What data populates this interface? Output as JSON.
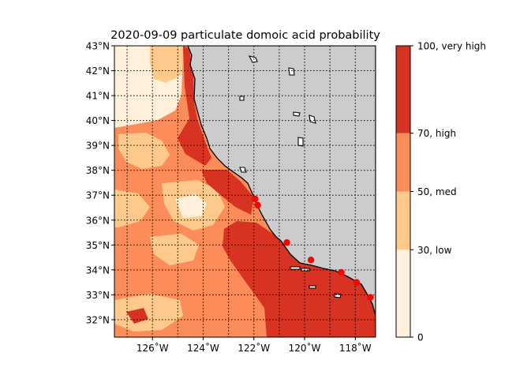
{
  "title": "2020-09-09 particulate domoic acid probability",
  "map": {
    "extent": {
      "lon_min": -127.5,
      "lon_max": -117.2,
      "lat_min": 31.3,
      "lat_max": 43.0
    },
    "lat_ticks": [
      {
        "value": 43,
        "label": "43°N"
      },
      {
        "value": 42,
        "label": "42°N"
      },
      {
        "value": 41,
        "label": "41°N"
      },
      {
        "value": 40,
        "label": "40°N"
      },
      {
        "value": 39,
        "label": "39°N"
      },
      {
        "value": 38,
        "label": "38°N"
      },
      {
        "value": 37,
        "label": "37°N"
      },
      {
        "value": 36,
        "label": "36°N"
      },
      {
        "value": 35,
        "label": "35°N"
      },
      {
        "value": 34,
        "label": "34°N"
      },
      {
        "value": 33,
        "label": "33°N"
      },
      {
        "value": 32,
        "label": "32°N"
      }
    ],
    "lon_ticks": [
      {
        "value": -126,
        "label": "126˚W"
      },
      {
        "value": -124,
        "label": "124˚W"
      },
      {
        "value": -122,
        "label": "122˚W"
      },
      {
        "value": -120,
        "label": "120˚W"
      },
      {
        "value": -118,
        "label": "118˚W"
      }
    ],
    "gridlines": "dotted",
    "land_color": "#cccccc",
    "coast_color": "#000000",
    "stations": [
      {
        "lon": -121.95,
        "lat": 36.85
      },
      {
        "lon": -121.85,
        "lat": 36.6
      },
      {
        "lon": -120.7,
        "lat": 35.1
      },
      {
        "lon": -119.75,
        "lat": 34.4
      },
      {
        "lon": -118.55,
        "lat": 33.9
      },
      {
        "lon": -117.95,
        "lat": 33.5
      },
      {
        "lon": -117.4,
        "lat": 32.9
      }
    ],
    "station_color": "#ff0000"
  },
  "colorbar": {
    "levels": [
      {
        "from": 0,
        "to": 30,
        "color": "#fff0dc"
      },
      {
        "from": 30,
        "to": 50,
        "color": "#fdca8c"
      },
      {
        "from": 50,
        "to": 70,
        "color": "#fc8c59"
      },
      {
        "from": 70,
        "to": 100,
        "color": "#d73222"
      }
    ],
    "tick_labels": [
      {
        "value": 100,
        "label": "100, very high"
      },
      {
        "value": 70,
        "label": "70, high"
      },
      {
        "value": 50,
        "label": "50, med"
      },
      {
        "value": 30,
        "label": "30, low"
      },
      {
        "value": 0,
        "label": "0"
      }
    ]
  }
}
